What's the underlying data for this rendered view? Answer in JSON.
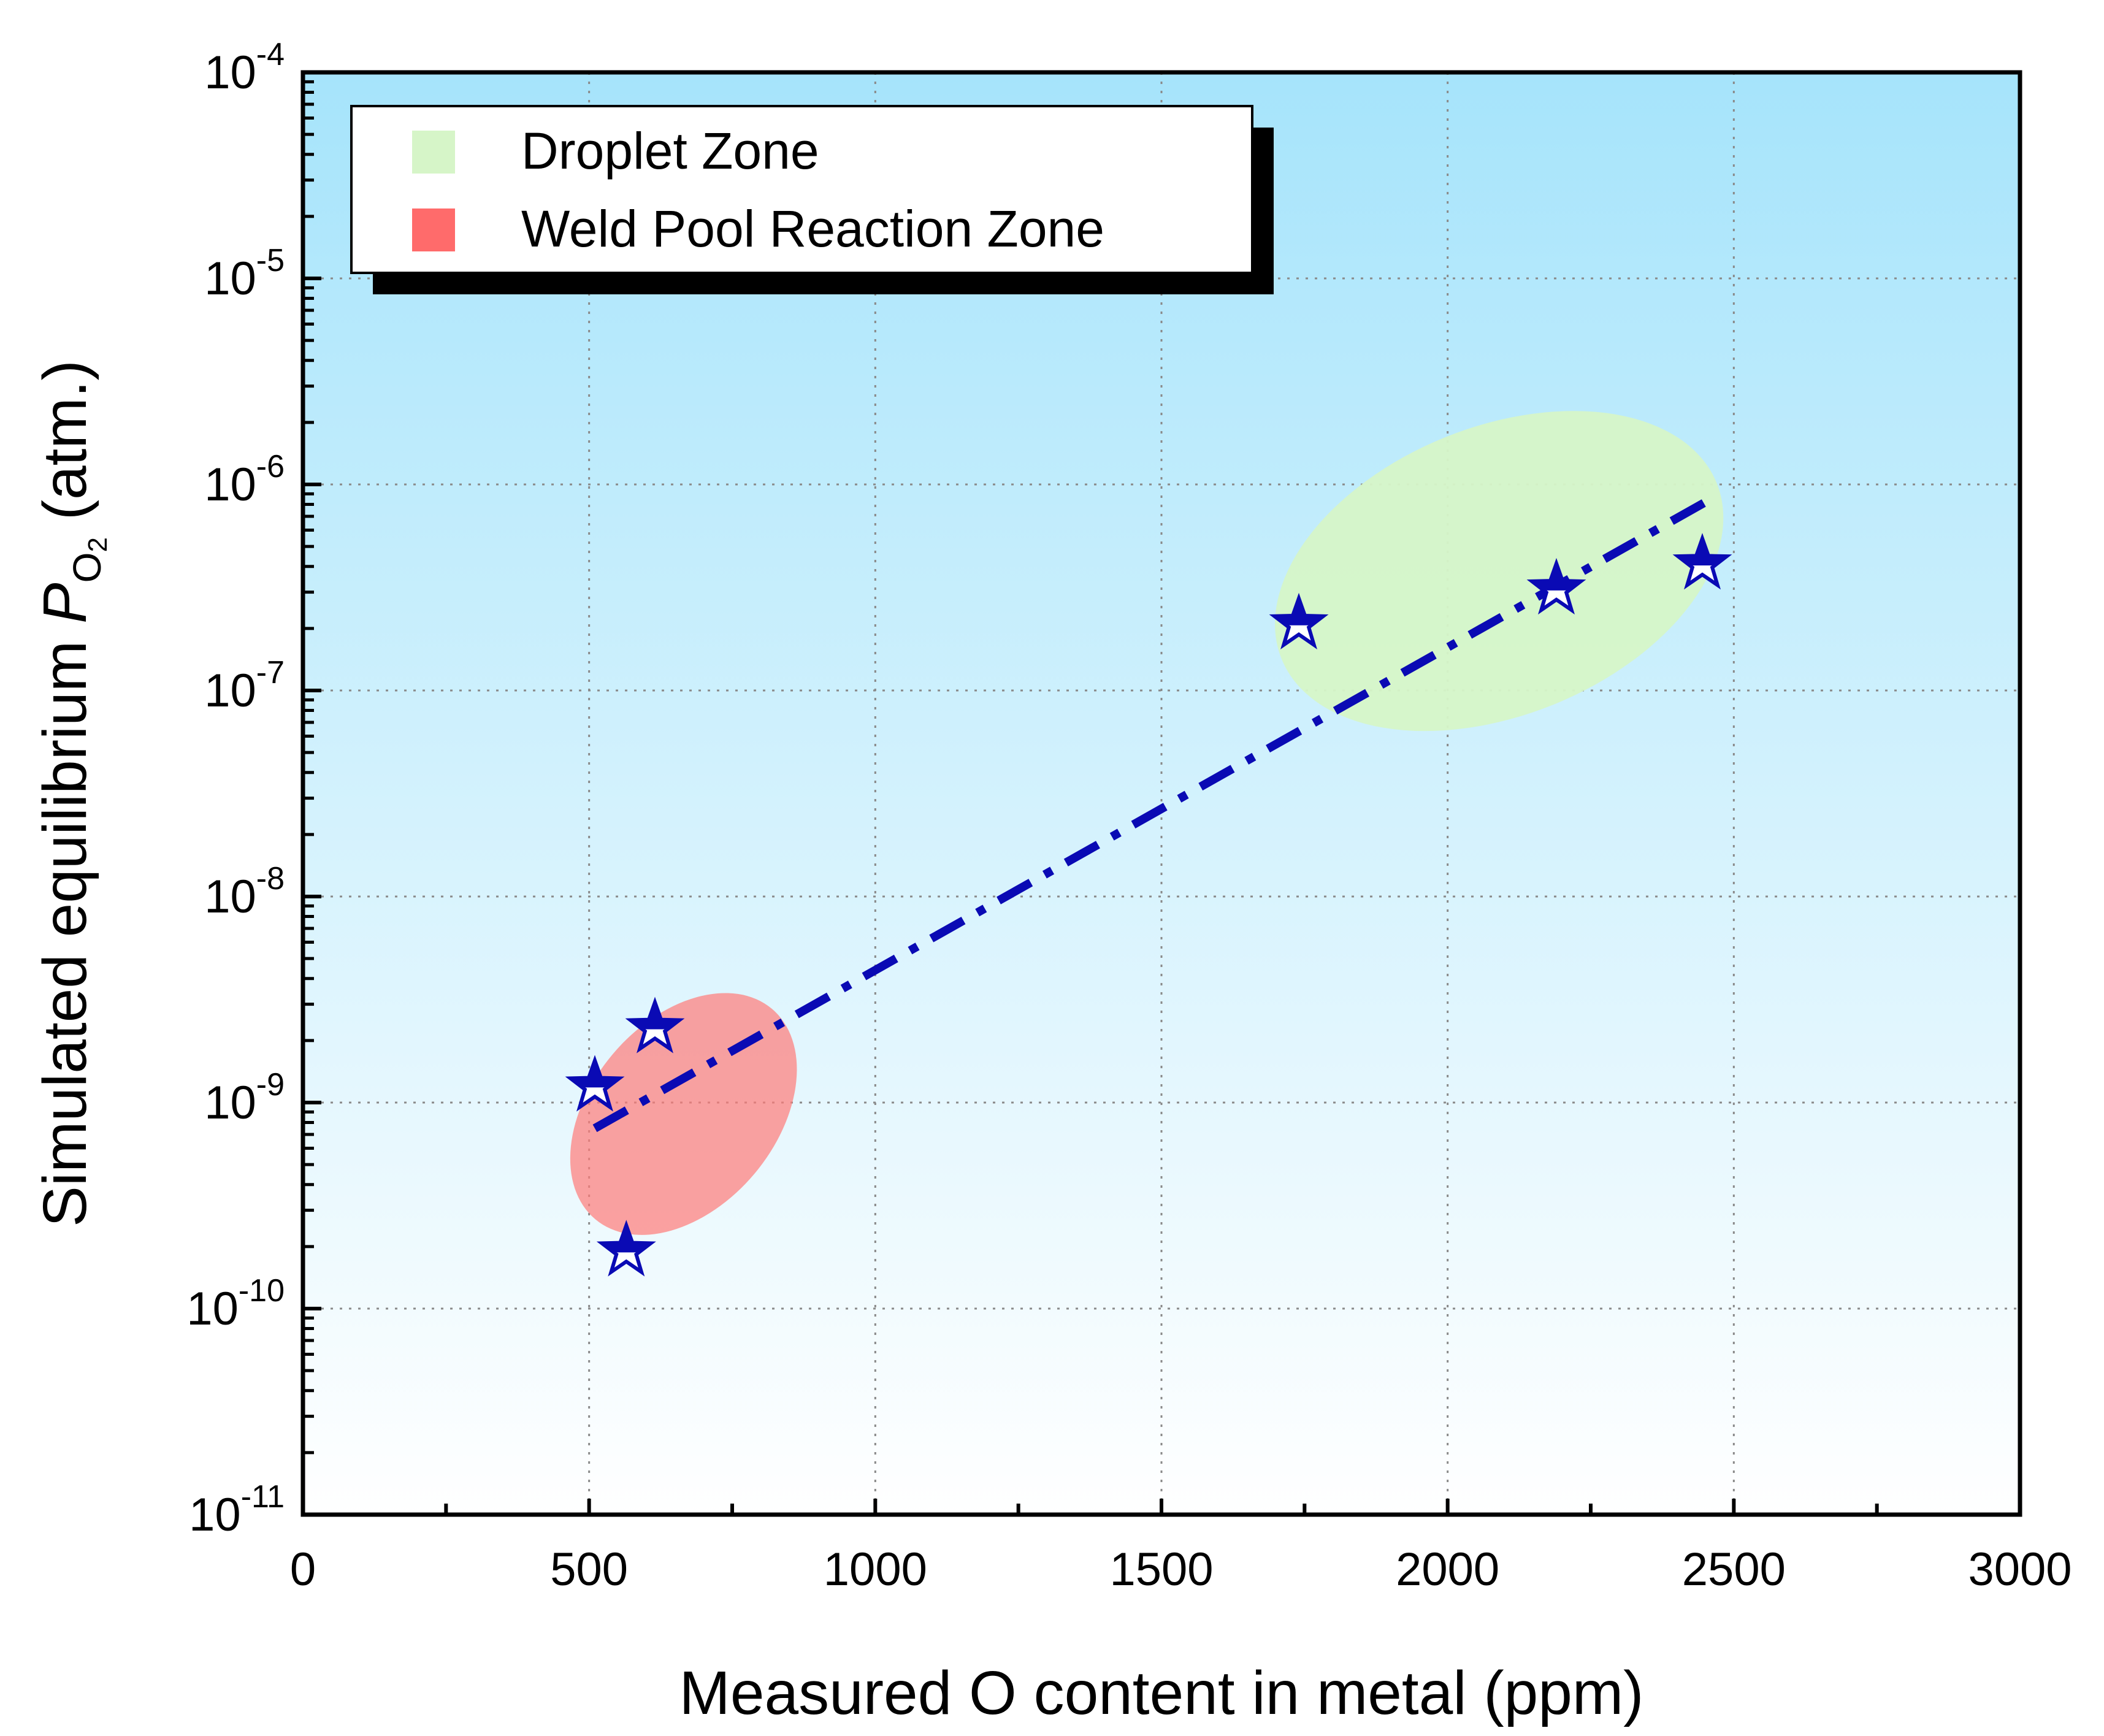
{
  "chart_data": {
    "type": "scatter",
    "xlabel": "Measured O content in metal (ppm)",
    "ylabel": {
      "prefix": "Simulated equilibrium ",
      "symbol": "P",
      "subscript": "O",
      "subscript_sub": "2",
      "suffix": " (atm.)"
    },
    "xlim": [
      0,
      3000
    ],
    "ylim": [
      1e-11,
      0.0001
    ],
    "yscale": "log",
    "grid": true,
    "x_ticks": [
      {
        "value": 0,
        "label": "0"
      },
      {
        "value": 500,
        "label": "500"
      },
      {
        "value": 1000,
        "label": "1000"
      },
      {
        "value": 1500,
        "label": "1500"
      },
      {
        "value": 2000,
        "label": "2000"
      },
      {
        "value": 2500,
        "label": "2500"
      },
      {
        "value": 3000,
        "label": "3000"
      }
    ],
    "y_ticks": [
      {
        "value": 1e-11,
        "base": "10",
        "exp": "-11"
      },
      {
        "value": 1e-10,
        "base": "10",
        "exp": "-10"
      },
      {
        "value": 1e-09,
        "base": "10",
        "exp": "-9"
      },
      {
        "value": 1e-08,
        "base": "10",
        "exp": "-8"
      },
      {
        "value": 1e-07,
        "base": "10",
        "exp": "-7"
      },
      {
        "value": 1e-06,
        "base": "10",
        "exp": "-6"
      },
      {
        "value": 1e-05,
        "base": "10",
        "exp": "-5"
      },
      {
        "value": 0.0001,
        "base": "10",
        "exp": "-4"
      }
    ],
    "points": [
      {
        "x": 510,
        "y": 1.2e-09
      },
      {
        "x": 565,
        "y": 1.9e-10
      },
      {
        "x": 615,
        "y": 2.3e-09
      },
      {
        "x": 1740,
        "y": 2.1e-07
      },
      {
        "x": 2190,
        "y": 3.1e-07
      },
      {
        "x": 2445,
        "y": 4.1e-07
      }
    ],
    "fit_line": {
      "x": [
        510,
        2450
      ],
      "y": [
        7.5e-10,
        8.2e-07
      ]
    },
    "zones": [
      {
        "name": "Droplet Zone",
        "color": "#d6f5c8",
        "cx": 2090,
        "cy": 3.8e-07,
        "rx": 410,
        "ry": 0.7,
        "angle_deg": -22
      },
      {
        "name": "Weld Pool Reaction Zone",
        "color": "#ff7b78",
        "cx": 665,
        "cy": 8.8e-10,
        "rx": 240.0,
        "ry": 0.45,
        "angle_deg": -50
      }
    ],
    "legend": {
      "placement": "top-left",
      "entries": [
        {
          "label": "Droplet Zone",
          "color": "#d6f5c8"
        },
        {
          "label": "Weld Pool Reaction Zone",
          "color": "#ff6b6b"
        }
      ]
    },
    "colors": {
      "background_top": "#a6e4fb",
      "background_bottom": "#ffffff",
      "marker": "#0a0ab4",
      "fit_line": "#0a0ab4"
    }
  }
}
